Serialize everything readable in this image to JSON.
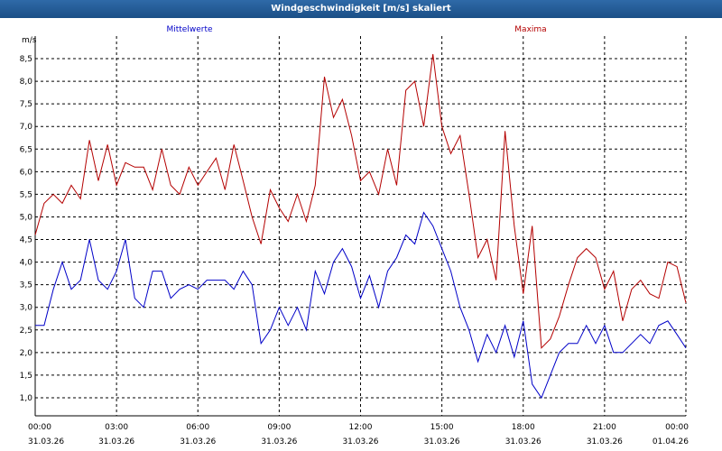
{
  "window": {
    "title": "Windgeschwindigkeit [m/s] skaliert"
  },
  "chart_data": {
    "type": "line",
    "title": "Windgeschwindigkeit [m/s] skaliert",
    "ylabel": "m/s",
    "xlabel": "",
    "ylim": [
      0.6,
      9.0
    ],
    "xlim": [
      0,
      24
    ],
    "grid": true,
    "yticks": [
      1.0,
      1.5,
      2.0,
      2.5,
      3.0,
      3.5,
      4.0,
      4.5,
      5.0,
      5.5,
      6.0,
      6.5,
      7.0,
      7.5,
      8.0,
      8.5
    ],
    "ytick_labels": [
      "1,0",
      "1,5",
      "2,0",
      "2,5",
      "3,0",
      "3,5",
      "4,0",
      "4,5",
      "5,0",
      "5,5",
      "6,0",
      "6,5",
      "7,0",
      "7,5",
      "8,0",
      "8,5"
    ],
    "xticks": [
      0,
      3,
      6,
      9,
      12,
      15,
      18,
      21,
      24
    ],
    "xtick_time_labels": [
      "00:00",
      "03:00",
      "06:00",
      "09:00",
      "12:00",
      "15:00",
      "18:00",
      "21:00",
      "00:00"
    ],
    "xtick_date_labels": [
      "31.03.26",
      "31.03.26",
      "31.03.26",
      "31.03.26",
      "31.03.26",
      "31.03.26",
      "31.03.26",
      "31.03.26",
      "01.04.26"
    ],
    "legend": {
      "mean_label": "Mittelwerte",
      "max_label": "Maxima"
    },
    "colors": {
      "mean": "#0000c8",
      "max": "#b40000",
      "grid": "#000000",
      "axis": "#000000"
    },
    "series": [
      {
        "name": "Mittelwerte",
        "x": [
          0,
          0.33,
          0.67,
          1,
          1.33,
          1.67,
          2,
          2.33,
          2.67,
          3,
          3.33,
          3.67,
          4,
          4.33,
          4.67,
          5,
          5.33,
          5.67,
          6,
          6.33,
          6.67,
          7,
          7.33,
          7.67,
          8,
          8.33,
          8.67,
          9,
          9.33,
          9.67,
          10,
          10.33,
          10.67,
          11,
          11.33,
          11.67,
          12,
          12.33,
          12.67,
          13,
          13.33,
          13.67,
          14,
          14.33,
          14.67,
          15,
          15.33,
          15.67,
          16,
          16.33,
          16.67,
          17,
          17.33,
          17.67,
          18,
          18.33,
          18.67,
          19,
          19.33,
          19.67,
          20,
          20.33,
          20.67,
          21,
          21.33,
          21.67,
          22,
          22.33,
          22.67,
          23,
          23.33,
          23.67,
          24
        ],
        "values": [
          2.6,
          2.6,
          3.4,
          4.0,
          3.4,
          3.6,
          4.5,
          3.6,
          3.4,
          3.8,
          4.5,
          3.2,
          3.0,
          3.8,
          3.8,
          3.2,
          3.4,
          3.5,
          3.4,
          3.6,
          3.6,
          3.6,
          3.4,
          3.8,
          3.5,
          2.2,
          2.5,
          3.0,
          2.6,
          3.0,
          2.5,
          3.8,
          3.3,
          4.0,
          4.3,
          3.9,
          3.2,
          3.7,
          3.0,
          3.8,
          4.1,
          4.6,
          4.4,
          5.1,
          4.8,
          4.3,
          3.8,
          3.0,
          2.5,
          1.8,
          2.4,
          2.0,
          2.6,
          1.9,
          2.7,
          1.3,
          1.0,
          1.5,
          2.0,
          2.2,
          2.2,
          2.6,
          2.2,
          2.6,
          2.0,
          2.0,
          2.2,
          2.4,
          2.2,
          2.6,
          2.7,
          2.4,
          2.1
        ]
      },
      {
        "name": "Maxima",
        "x": [
          0,
          0.33,
          0.67,
          1,
          1.33,
          1.67,
          2,
          2.33,
          2.67,
          3,
          3.33,
          3.67,
          4,
          4.33,
          4.67,
          5,
          5.33,
          5.67,
          6,
          6.33,
          6.67,
          7,
          7.33,
          7.67,
          8,
          8.33,
          8.67,
          9,
          9.33,
          9.67,
          10,
          10.33,
          10.67,
          11,
          11.33,
          11.67,
          12,
          12.33,
          12.67,
          13,
          13.33,
          13.67,
          14,
          14.33,
          14.67,
          15,
          15.33,
          15.67,
          16,
          16.33,
          16.67,
          17,
          17.33,
          17.67,
          18,
          18.33,
          18.67,
          19,
          19.33,
          19.67,
          20,
          20.33,
          20.67,
          21,
          21.33,
          21.67,
          22,
          22.33,
          22.67,
          23,
          23.33,
          23.67,
          24
        ],
        "values": [
          4.6,
          5.3,
          5.5,
          5.3,
          5.7,
          5.4,
          6.7,
          5.8,
          6.6,
          5.7,
          6.2,
          6.1,
          6.1,
          5.6,
          6.5,
          5.7,
          5.5,
          6.1,
          5.7,
          6.0,
          6.3,
          5.6,
          6.6,
          5.8,
          5.0,
          4.4,
          5.6,
          5.2,
          4.9,
          5.5,
          4.9,
          5.7,
          8.1,
          7.2,
          7.6,
          6.8,
          5.8,
          6.0,
          5.5,
          6.5,
          5.7,
          7.8,
          8.0,
          7.0,
          8.6,
          7.0,
          6.4,
          6.8,
          5.5,
          4.1,
          4.5,
          3.6,
          6.9,
          4.8,
          3.3,
          4.8,
          2.1,
          2.3,
          2.8,
          3.5,
          4.1,
          4.3,
          4.1,
          3.4,
          3.8,
          2.7,
          3.4,
          3.6,
          3.3,
          3.2,
          4.0,
          3.9,
          3.1
        ]
      }
    ]
  }
}
